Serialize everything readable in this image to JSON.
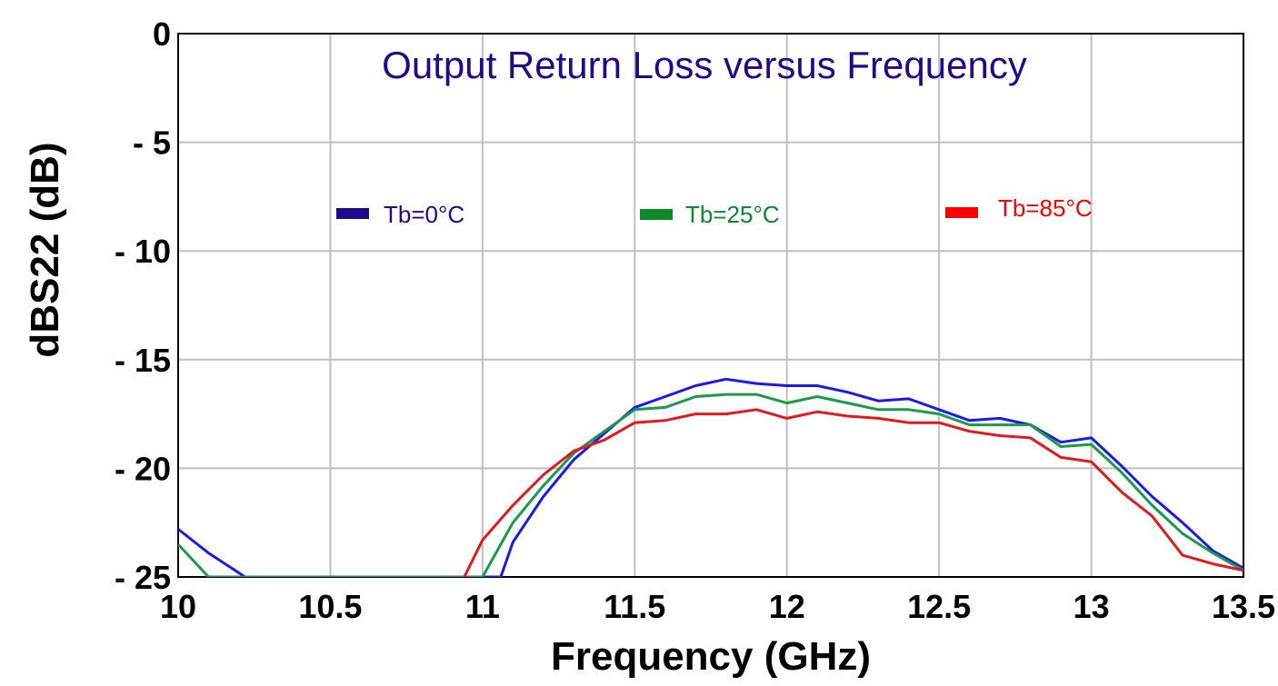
{
  "chart_data": {
    "type": "line",
    "title": "Output Return Loss versus Frequency",
    "xlabel": "Frequency (GHz)",
    "ylabel": "dBS22 (dB)",
    "xlim": [
      10,
      13.5
    ],
    "ylim": [
      -25,
      0
    ],
    "grid": true,
    "x_ticks": [
      10,
      10.5,
      11,
      11.5,
      12,
      12.5,
      13,
      13.5
    ],
    "x_tick_labels": [
      "10",
      "10.5",
      "11",
      "11.5",
      "12",
      "12.5",
      "13",
      "13.5"
    ],
    "y_ticks": [
      0,
      -5,
      -10,
      -15,
      -20,
      -25
    ],
    "y_tick_labels": [
      "0",
      "- 5",
      "- 10",
      "- 15",
      "- 20",
      "- 25"
    ],
    "legend_placement": "top",
    "series": [
      {
        "name": "Tb=0°C",
        "color": "#1a1aee",
        "legend_color": "#1e0a8c",
        "x": [
          10,
          10.1,
          10.22,
          11.06,
          11.1,
          11.2,
          11.3,
          11.4,
          11.5,
          11.6,
          11.7,
          11.8,
          11.9,
          12.0,
          12.1,
          12.2,
          12.3,
          12.4,
          12.5,
          12.6,
          12.7,
          12.8,
          12.9,
          13.0,
          13.1,
          13.2,
          13.3,
          13.4,
          13.5
        ],
        "values": [
          -22.8,
          -23.9,
          -25.0,
          -25.0,
          -23.4,
          -21.3,
          -19.6,
          -18.4,
          -17.2,
          -16.7,
          -16.2,
          -15.9,
          -16.1,
          -16.2,
          -16.2,
          -16.5,
          -16.9,
          -16.8,
          -17.3,
          -17.8,
          -17.7,
          -18.0,
          -18.8,
          -18.6,
          -19.9,
          -21.3,
          -22.5,
          -23.8,
          -24.6
        ]
      },
      {
        "name": "Tb=25°C",
        "color": "#1a9a4a",
        "legend_color": "#0d8a2a",
        "x": [
          10,
          10.1,
          11.0,
          11.1,
          11.2,
          11.3,
          11.4,
          11.5,
          11.6,
          11.7,
          11.8,
          11.9,
          12.0,
          12.1,
          12.2,
          12.3,
          12.4,
          12.5,
          12.6,
          12.7,
          12.8,
          12.9,
          13.0,
          13.1,
          13.2,
          13.3,
          13.4,
          13.5
        ],
        "values": [
          -23.5,
          -25.0,
          -25.0,
          -22.5,
          -20.8,
          -19.3,
          -18.3,
          -17.3,
          -17.2,
          -16.7,
          -16.6,
          -16.6,
          -17.0,
          -16.7,
          -17.0,
          -17.3,
          -17.3,
          -17.5,
          -18.0,
          -18.0,
          -18.0,
          -19.0,
          -18.9,
          -20.2,
          -21.7,
          -23.0,
          -23.9,
          -24.7
        ]
      },
      {
        "name": "Tb=85°C",
        "color": "#e41a1a",
        "legend_color": "#ff0000",
        "x": [
          10.94,
          11.0,
          11.1,
          11.2,
          11.3,
          11.4,
          11.5,
          11.6,
          11.7,
          11.8,
          11.9,
          12.0,
          12.1,
          12.2,
          12.3,
          12.4,
          12.5,
          12.6,
          12.7,
          12.8,
          12.9,
          13.0,
          13.1,
          13.2,
          13.3,
          13.4,
          13.5
        ],
        "values": [
          -25.0,
          -23.3,
          -21.7,
          -20.3,
          -19.2,
          -18.7,
          -17.9,
          -17.8,
          -17.5,
          -17.5,
          -17.3,
          -17.7,
          -17.4,
          -17.6,
          -17.7,
          -17.9,
          -17.9,
          -18.3,
          -18.5,
          -18.6,
          -19.5,
          -19.7,
          -21.1,
          -22.2,
          -24.0,
          -24.4,
          -24.7
        ]
      }
    ]
  }
}
